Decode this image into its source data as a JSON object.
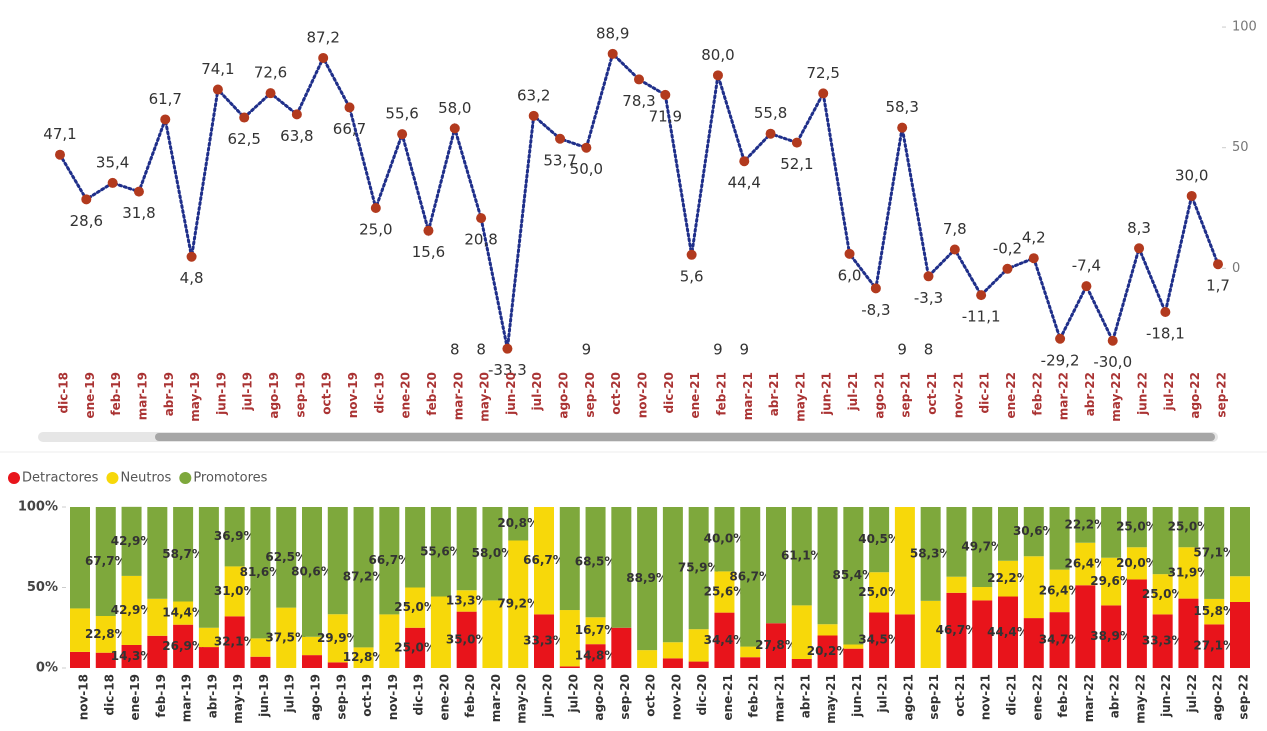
{
  "chart_data": [
    {
      "type": "line",
      "categories": [
        "dic-18",
        "ene-19",
        "feb-19",
        "mar-19",
        "abr-19",
        "may-19",
        "jun-19",
        "jul-19",
        "ago-19",
        "sep-19",
        "oct-19",
        "nov-19",
        "dic-19",
        "ene-20",
        "feb-20",
        "mar-20",
        "may-20",
        "jun-20",
        "jul-20",
        "ago-20",
        "sep-20",
        "oct-20",
        "nov-20",
        "dic-20",
        "ene-21",
        "feb-21",
        "mar-21",
        "abr-21",
        "may-21",
        "jun-21",
        "jul-21",
        "ago-21",
        "sep-21",
        "oct-21",
        "nov-21",
        "dic-21",
        "ene-22",
        "feb-22",
        "mar-22",
        "abr-22",
        "may-22",
        "jun-22",
        "jul-22",
        "ago-22",
        "sep-22"
      ],
      "values": [
        47.1,
        28.6,
        35.4,
        31.8,
        61.7,
        4.8,
        74.1,
        62.5,
        72.6,
        63.8,
        87.2,
        66.7,
        25.0,
        55.6,
        15.6,
        58.0,
        20.8,
        -33.3,
        63.2,
        53.7,
        50.0,
        88.9,
        78.3,
        71.9,
        5.6,
        80.0,
        44.4,
        55.8,
        52.1,
        72.5,
        6.0,
        -8.3,
        58.3,
        -3.3,
        7.8,
        -11.1,
        -0.2,
        4.2,
        -29.2,
        -7.4,
        -30.0,
        8.3,
        -18.1,
        30.0,
        1.7
      ],
      "value_labels": [
        "47,1",
        "28,6",
        "35,4",
        "31,8",
        "61,7",
        "4,8",
        "74,1",
        "62,5",
        "72,6",
        "63,8",
        "87,2",
        "66,7",
        "25,0",
        "55,6",
        "15,6",
        "58,0",
        "20,8",
        "-33,3",
        "63,2",
        "53,7",
        "50,0",
        "88,9",
        "78,3",
        "71,9",
        "5,6",
        "80,0",
        "44,4",
        "55,8",
        "52,1",
        "72,5",
        "6,0",
        "-8,3",
        "58,3",
        "-3,3",
        "7,8",
        "-11,1",
        "-0,2",
        "4,2",
        "-29,2",
        "-7,4",
        "-30,0",
        "8,3",
        "-18,1",
        "30,0",
        "1,7"
      ],
      "secondary_labels": [
        null,
        null,
        null,
        null,
        null,
        null,
        null,
        null,
        null,
        null,
        null,
        null,
        null,
        null,
        null,
        8,
        8,
        null,
        null,
        null,
        9,
        null,
        null,
        null,
        null,
        9,
        9,
        null,
        null,
        null,
        null,
        null,
        9,
        8,
        null,
        null,
        null,
        null,
        null,
        null,
        null,
        null,
        null,
        null,
        null
      ],
      "line_color": "#1f2f8a",
      "marker_color": "#b23a1e",
      "ylim": [
        -38,
        105
      ],
      "yticks": [
        0,
        50,
        100
      ]
    },
    {
      "type": "stacked_bar",
      "categories": [
        "nov-18",
        "dic-18",
        "ene-19",
        "feb-19",
        "mar-19",
        "abr-19",
        "may-19",
        "jun-19",
        "jul-19",
        "ago-19",
        "sep-19",
        "oct-19",
        "nov-19",
        "dic-19",
        "ene-20",
        "feb-20",
        "mar-20",
        "may-20",
        "jun-20",
        "jul-20",
        "ago-20",
        "sep-20",
        "oct-20",
        "nov-20",
        "dic-20",
        "ene-21",
        "feb-21",
        "mar-21",
        "abr-21",
        "may-21",
        "jun-21",
        "jul-21",
        "ago-21",
        "sep-21",
        "oct-21",
        "nov-21",
        "dic-21",
        "ene-22",
        "feb-22",
        "mar-22",
        "abr-22",
        "may-22",
        "jun-22",
        "jul-22",
        "ago-22",
        "sep-22"
      ],
      "legend": "top-left",
      "series": [
        {
          "name": "Detractores",
          "color": "#e8141b",
          "values": [
            10,
            9.5,
            14.3,
            20,
            26.9,
            13,
            32.1,
            7,
            0,
            8,
            3.5,
            0,
            0,
            25,
            0,
            35,
            0,
            0,
            33.3,
            1,
            14.8,
            25,
            0,
            6,
            4,
            34.4,
            6.7,
            27.8,
            5.6,
            20.2,
            12,
            34.5,
            33.3,
            0,
            46.7,
            42,
            44.4,
            31,
            34.7,
            51.4,
            38.9,
            55,
            33.3,
            43.1,
            27.1,
            41
          ],
          "value_labels": [
            null,
            null,
            "14,3%",
            null,
            "26,9%",
            null,
            "32,1%",
            null,
            null,
            null,
            null,
            null,
            null,
            "25,0%",
            null,
            "35,0%",
            null,
            null,
            "33,3%",
            null,
            "14,8%",
            null,
            null,
            null,
            null,
            "34,4%",
            null,
            "27,8%",
            null,
            "20,2%",
            null,
            "34,5%",
            null,
            null,
            "46,7%",
            null,
            "44,4%",
            null,
            "34,7%",
            null,
            "38,9%",
            null,
            "33,3%",
            null,
            "27,1%",
            null
          ]
        },
        {
          "name": "Neutros",
          "color": "#f7d80a",
          "values": [
            27,
            22.8,
            42.9,
            23,
            14.4,
            12,
            31,
            11.4,
            37.5,
            11.4,
            29.9,
            12.8,
            33.3,
            25,
            44.4,
            13.3,
            42,
            79.2,
            66.7,
            35,
            16.7,
            0,
            11.1,
            10,
            20.1,
            25.6,
            6.6,
            0,
            33.3,
            7,
            2.6,
            25,
            66.7,
            41.7,
            10,
            8.3,
            22.2,
            38.4,
            26.4,
            26.4,
            29.6,
            20,
            25,
            31.9,
            15.8,
            16
          ],
          "value_labels": [
            null,
            "22,8%",
            "42,9%",
            null,
            "14,4%",
            null,
            "31,0%",
            null,
            "37,5%",
            null,
            "29,9%",
            "12,8%",
            null,
            "25,0%",
            null,
            "13,3%",
            null,
            "79,2%",
            "66,7%",
            null,
            "16,7%",
            null,
            null,
            null,
            null,
            "25,6%",
            null,
            null,
            null,
            null,
            null,
            "25,0%",
            null,
            null,
            null,
            null,
            "22,2%",
            null,
            "26,4%",
            "26,4%",
            "29,6%",
            "20,0%",
            "25,0%",
            "31,9%",
            "15,8%",
            null
          ]
        },
        {
          "name": "Promotores",
          "color": "#7ea83c",
          "values": [
            63,
            67.7,
            42.9,
            57,
            58.7,
            75,
            36.9,
            81.6,
            62.5,
            80.6,
            66.6,
            87.2,
            66.7,
            50,
            55.6,
            51.7,
            58,
            20.8,
            0,
            64,
            68.5,
            75,
            88.9,
            84,
            75.9,
            40,
            86.7,
            72.2,
            61.1,
            72.8,
            85.4,
            40.5,
            0,
            58.3,
            43.3,
            49.7,
            33.4,
            30.6,
            38.9,
            22.2,
            31.5,
            25,
            41.7,
            25,
            57.1,
            43
          ],
          "value_labels": [
            null,
            "67,7%",
            "42,9%",
            null,
            "58,7%",
            null,
            "36,9%",
            "81,6%",
            "62,5%",
            "80,6%",
            null,
            "87,2%",
            "66,7%",
            null,
            "55,6%",
            null,
            "58,0%",
            "20,8%",
            null,
            null,
            "68,5%",
            null,
            "88,9%",
            null,
            "75,9%",
            "40,0%",
            "86,7%",
            null,
            "61,1%",
            null,
            "85,4%",
            "40,5%",
            null,
            "58,3%",
            null,
            "49,7%",
            null,
            "30,6%",
            null,
            "22,2%",
            null,
            "25,0%",
            null,
            "25,0%",
            "57,1%",
            null
          ]
        }
      ],
      "ylim": [
        0,
        100
      ],
      "yticks": [
        {
          "value": 0,
          "label": "0%"
        },
        {
          "value": 50,
          "label": "50%"
        },
        {
          "value": 100,
          "label": "100%"
        }
      ]
    }
  ]
}
